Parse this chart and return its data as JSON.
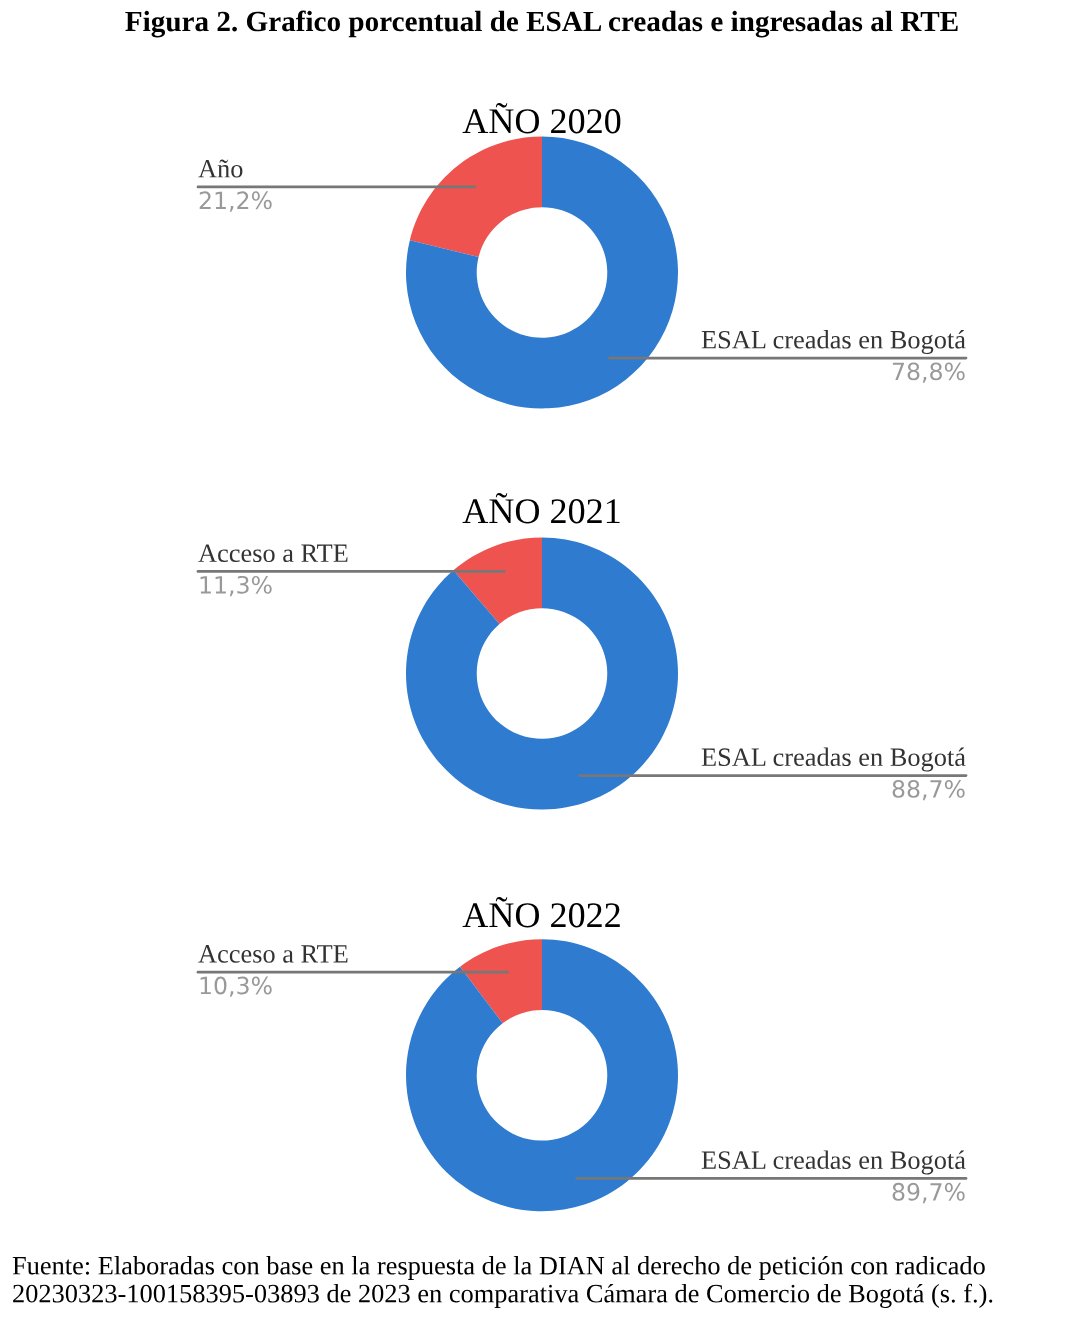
{
  "chart_data": [
    {
      "type": "donut",
      "title": "AÑO 2020",
      "annotations": [
        "Figura 2. Grafico porcentual de ESAL creadas e ingresadas al RTE"
      ],
      "categories": [
        "Año",
        "ESAL creadas en Bogotá"
      ],
      "values": [
        21.2,
        78.8
      ],
      "colors": [
        "#ee5350",
        "#2e7bcf"
      ],
      "value_labels": [
        "21,2%",
        "78,8%"
      ]
    },
    {
      "type": "donut",
      "title": "AÑO 2021",
      "categories": [
        "Acceso a RTE",
        "ESAL creadas en Bogotá"
      ],
      "values": [
        11.3,
        88.7
      ],
      "colors": [
        "#ee5350",
        "#2e7bcf"
      ],
      "value_labels": [
        "11,3%",
        "88,7%"
      ]
    },
    {
      "type": "donut",
      "title": "AÑO 2022",
      "annotations": [
        "Fuente: Elaboradas con base en la respuesta de la DIAN al derecho de petición con radicado 20230323-100158395-03893 de 2023 en comparativa Cámara de Comercio de Bogotá (s. f.)."
      ],
      "categories": [
        "Acceso a RTE",
        "ESAL creadas en Bogotá"
      ],
      "values": [
        10.3,
        89.7
      ],
      "colors": [
        "#ee5350",
        "#2e7bcf"
      ],
      "value_labels": [
        "10,3%",
        "89,7%"
      ]
    }
  ]
}
